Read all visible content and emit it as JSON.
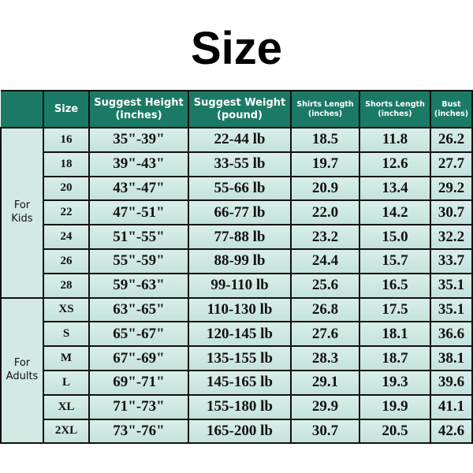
{
  "title": "Size",
  "colors": {
    "header": "#1b7a66",
    "cell": "#cde8e3",
    "border": "#111111"
  },
  "headers": [
    {
      "line1": "Size",
      "line2": ""
    },
    {
      "line1": "Suggest Height",
      "line2": "(inches)"
    },
    {
      "line1": "Suggest Weight",
      "line2": "(pound)"
    },
    {
      "line1": "Shirts Length",
      "line2": "(inches)"
    },
    {
      "line1": "Shorts Length",
      "line2": "(inches)"
    },
    {
      "line1": "Bust",
      "line2": "(inches)"
    }
  ],
  "groups": [
    {
      "label1": "For",
      "label2": "Kids",
      "rows": [
        [
          "16",
          "35\"-39\"",
          "22-44 lb",
          "18.5",
          "11.8",
          "26.2"
        ],
        [
          "18",
          "39\"-43\"",
          "33-55 lb",
          "19.7",
          "12.6",
          "27.7"
        ],
        [
          "20",
          "43\"-47\"",
          "55-66 lb",
          "20.9",
          "13.4",
          "29.2"
        ],
        [
          "22",
          "47\"-51\"",
          "66-77 lb",
          "22.0",
          "14.2",
          "30.7"
        ],
        [
          "24",
          "51\"-55\"",
          "77-88 lb",
          "23.2",
          "15.0",
          "32.2"
        ],
        [
          "26",
          "55\"-59\"",
          "88-99 lb",
          "24.4",
          "15.7",
          "33.7"
        ],
        [
          "28",
          "59\"-63\"",
          "99-110 lb",
          "25.6",
          "16.5",
          "35.1"
        ]
      ]
    },
    {
      "label1": "For",
      "label2": "Adults",
      "rows": [
        [
          "XS",
          "63\"-65\"",
          "110-130 lb",
          "26.8",
          "17.5",
          "35.1"
        ],
        [
          "S",
          "65\"-67\"",
          "120-145 lb",
          "27.6",
          "18.1",
          "36.6"
        ],
        [
          "M",
          "67\"-69\"",
          "135-155 lb",
          "28.3",
          "18.7",
          "38.1"
        ],
        [
          "L",
          "69\"-71\"",
          "145-165 lb",
          "29.1",
          "19.3",
          "39.6"
        ],
        [
          "XL",
          "71\"-73\"",
          "155-180 lb",
          "29.9",
          "19.9",
          "41.1"
        ],
        [
          "2XL",
          "73\"-76\"",
          "165-200 lb",
          "30.7",
          "20.5",
          "42.6"
        ]
      ]
    }
  ]
}
